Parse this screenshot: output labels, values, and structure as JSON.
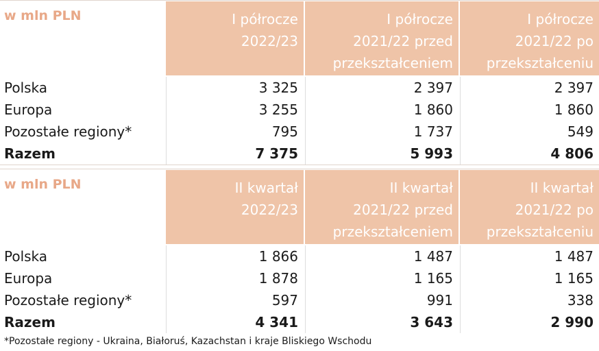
{
  "tables": [
    {
      "header": [
        [
          "w mln PLN"
        ],
        [
          "I półrocze",
          "2022/23"
        ],
        [
          "I półrocze",
          "2021/22 przed",
          "przekształceniem"
        ],
        [
          "I półrocze",
          "2021/22 po",
          "przekształceniu"
        ]
      ],
      "rows": [
        [
          "Polska",
          "3 325",
          "2 397",
          "2 397"
        ],
        [
          "Europa",
          "3 255",
          "1 860",
          "1 860"
        ],
        [
          "Pozostałe regiony*",
          "795",
          "1 737",
          "549"
        ],
        [
          "Razem",
          "7 375",
          "5 993",
          "4 806"
        ]
      ]
    },
    {
      "header": [
        [
          "w mln PLN"
        ],
        [
          "II kwartał",
          "2022/23"
        ],
        [
          "II kwartał",
          "2021/22 przed",
          "przekształceniem"
        ],
        [
          "II kwartał",
          "2021/22 po",
          "przekształceniu"
        ]
      ],
      "rows": [
        [
          "Polska",
          "1 866",
          "1 487",
          "1 487"
        ],
        [
          "Europa",
          "1 878",
          "1 165",
          "1 165"
        ],
        [
          "Pozostałe regiony*",
          "597",
          "991",
          "338"
        ],
        [
          "Razem",
          "4 341",
          "3 643",
          "2 990"
        ]
      ]
    }
  ],
  "footnote": "*Pozostałe regiony - Ukraina, Białoruś, Kazachstan i kraje Bliskiego Wschodu"
}
